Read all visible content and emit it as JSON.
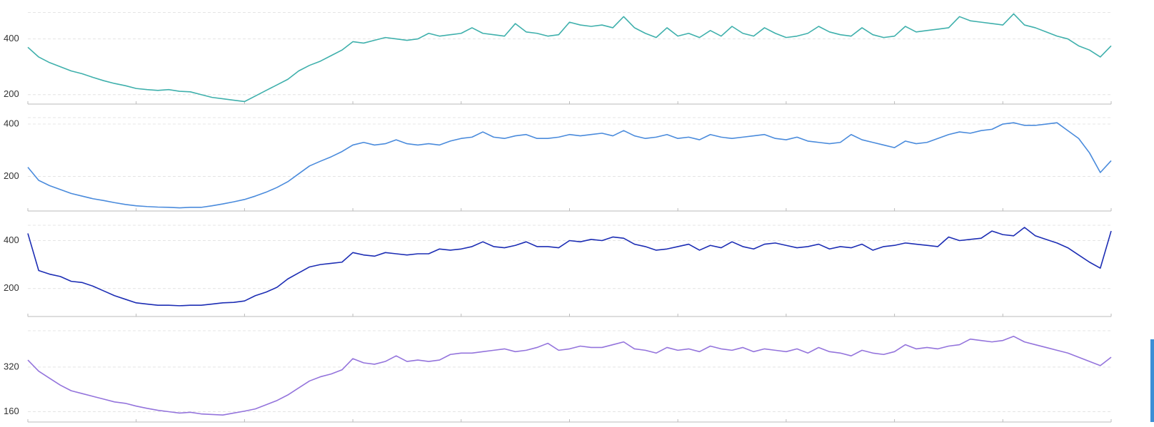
{
  "chart_data": [
    {
      "type": "line",
      "color": "#3fb0ac",
      "ylim": [
        166,
        500
      ],
      "yticks": [
        200,
        400
      ],
      "grid": true,
      "values": [
        370,
        335,
        315,
        300,
        285,
        275,
        262,
        250,
        240,
        232,
        222,
        218,
        215,
        218,
        212,
        210,
        200,
        190,
        185,
        180,
        175,
        195,
        215,
        235,
        255,
        285,
        305,
        320,
        340,
        360,
        390,
        385,
        395,
        405,
        400,
        395,
        400,
        420,
        410,
        415,
        420,
        440,
        420,
        415,
        410,
        455,
        425,
        420,
        410,
        415,
        460,
        450,
        445,
        450,
        440,
        480,
        440,
        420,
        405,
        440,
        410,
        420,
        405,
        430,
        410,
        445,
        420,
        410,
        440,
        420,
        405,
        410,
        420,
        445,
        425,
        415,
        410,
        440,
        415,
        405,
        410,
        445,
        425,
        430,
        435,
        440,
        480,
        465,
        460,
        455,
        450,
        490,
        450,
        440,
        425,
        410,
        400,
        375,
        360,
        335,
        375
      ]
    },
    {
      "type": "line",
      "color": "#4a8bdc",
      "ylim": [
        68,
        430
      ],
      "yticks": [
        200,
        400
      ],
      "grid": true,
      "values": [
        235,
        185,
        165,
        150,
        135,
        125,
        115,
        108,
        100,
        93,
        88,
        85,
        83,
        82,
        80,
        82,
        82,
        88,
        95,
        103,
        112,
        125,
        140,
        158,
        180,
        210,
        240,
        258,
        275,
        295,
        320,
        330,
        320,
        325,
        340,
        325,
        320,
        325,
        320,
        335,
        345,
        350,
        370,
        350,
        345,
        355,
        360,
        345,
        345,
        350,
        360,
        355,
        360,
        365,
        355,
        375,
        355,
        345,
        350,
        360,
        345,
        350,
        340,
        360,
        350,
        345,
        350,
        355,
        360,
        345,
        340,
        350,
        335,
        330,
        325,
        330,
        360,
        340,
        330,
        320,
        310,
        335,
        325,
        330,
        345,
        360,
        370,
        365,
        375,
        380,
        400,
        405,
        395,
        395,
        400,
        405,
        375,
        345,
        290,
        215,
        260
      ]
    },
    {
      "type": "line",
      "color": "#1c2db4",
      "ylim": [
        83,
        470
      ],
      "yticks": [
        200,
        400
      ],
      "grid": true,
      "values": [
        430,
        275,
        260,
        250,
        230,
        225,
        210,
        190,
        170,
        155,
        140,
        135,
        130,
        130,
        128,
        130,
        130,
        135,
        140,
        142,
        148,
        170,
        185,
        205,
        240,
        265,
        290,
        300,
        305,
        310,
        350,
        340,
        335,
        350,
        345,
        340,
        345,
        345,
        365,
        360,
        365,
        375,
        395,
        375,
        370,
        380,
        395,
        375,
        375,
        370,
        400,
        395,
        405,
        400,
        415,
        410,
        385,
        375,
        360,
        365,
        375,
        385,
        360,
        380,
        370,
        395,
        375,
        365,
        385,
        390,
        380,
        370,
        375,
        385,
        365,
        375,
        370,
        385,
        360,
        375,
        380,
        390,
        385,
        380,
        375,
        415,
        400,
        405,
        410,
        440,
        425,
        420,
        455,
        420,
        405,
        390,
        370,
        340,
        310,
        285,
        440
      ]
    },
    {
      "type": "line",
      "color": "#9474dc",
      "ylim": [
        123,
        455
      ],
      "yticks": [
        160,
        320
      ],
      "grid": true,
      "values": [
        345,
        305,
        280,
        255,
        235,
        225,
        215,
        205,
        195,
        190,
        180,
        172,
        165,
        160,
        155,
        158,
        152,
        150,
        148,
        155,
        162,
        170,
        185,
        200,
        220,
        245,
        270,
        285,
        295,
        310,
        350,
        335,
        330,
        340,
        360,
        340,
        345,
        340,
        345,
        365,
        370,
        370,
        375,
        380,
        385,
        375,
        380,
        390,
        405,
        380,
        385,
        395,
        390,
        390,
        400,
        410,
        385,
        380,
        370,
        390,
        380,
        385,
        375,
        395,
        385,
        380,
        390,
        375,
        385,
        380,
        375,
        385,
        370,
        390,
        375,
        370,
        360,
        380,
        370,
        365,
        375,
        400,
        385,
        390,
        385,
        395,
        400,
        420,
        415,
        410,
        415,
        430,
        410,
        400,
        390,
        380,
        370,
        355,
        340,
        325,
        355
      ]
    }
  ]
}
